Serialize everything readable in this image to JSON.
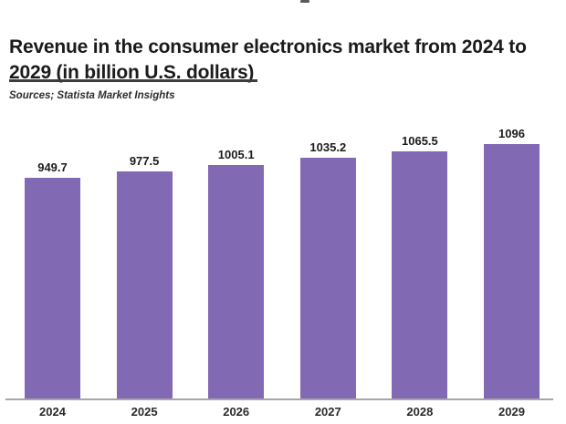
{
  "header": {
    "title": "Revenue in the consumer electronics market from 2024 to 2029 (in billion U.S. dollars)",
    "source": "Sources; Statista Market Insights"
  },
  "colors": {
    "bar": "#8169b4",
    "title_text": "#1b1b1b",
    "source_text": "#2d2d2d",
    "axis_line": "#a6a6a6",
    "value_label": "#1b1b1b",
    "year_label": "#2a2a2a",
    "background": "#ffffff"
  },
  "chart_data": {
    "type": "bar",
    "title": "Revenue in the consumer electronics market from 2024 to 2029 (in billion U.S. dollars)",
    "source": "Sources; Statista Market Insights",
    "categories": [
      "2024",
      "2025",
      "2026",
      "2027",
      "2028",
      "2029"
    ],
    "values": [
      949.7,
      977.5,
      1005.1,
      1035.2,
      1065.5,
      1096
    ],
    "value_labels": [
      "949.7",
      "977.5",
      "1005.1",
      "1035.2",
      "1065.5",
      "1096"
    ],
    "xlabel": "",
    "ylabel": "",
    "ylim": [
      0,
      1150
    ],
    "grid": false,
    "legend": null,
    "bar_color": "#8169b4",
    "data_labels_shown": true,
    "baseline_shown": true
  }
}
